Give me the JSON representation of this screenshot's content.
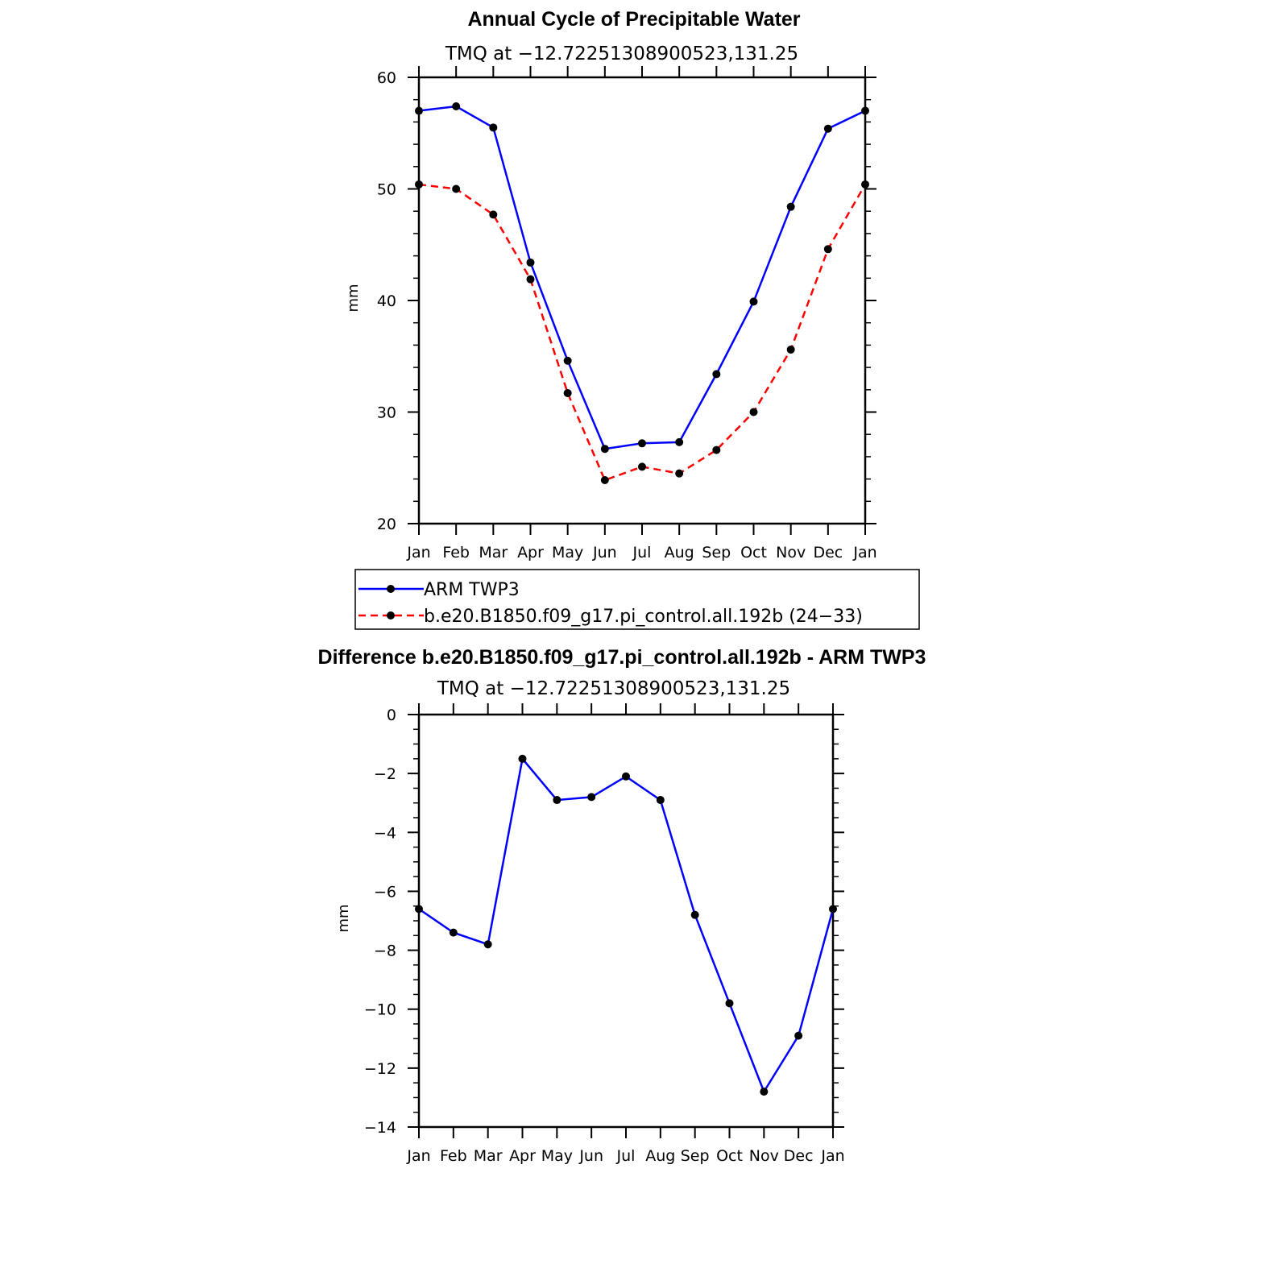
{
  "chart_data": [
    {
      "type": "line",
      "title": "Annual Cycle of Precipitable Water",
      "subtitle": "TMQ at −12.72251308900523,131.25",
      "ylabel": "mm",
      "xlabel": "",
      "categories": [
        "Jan",
        "Feb",
        "Mar",
        "Apr",
        "May",
        "Jun",
        "Jul",
        "Aug",
        "Sep",
        "Oct",
        "Nov",
        "Dec",
        "Jan"
      ],
      "ylim": [
        20,
        60
      ],
      "yticks": [
        "20",
        "30",
        "40",
        "50",
        "60"
      ],
      "series": [
        {
          "name": "ARM TWP3",
          "color": "#0000ff",
          "dash": "solid",
          "values": [
            57.0,
            57.4,
            55.5,
            43.4,
            34.6,
            26.7,
            27.2,
            27.3,
            33.4,
            39.9,
            48.4,
            55.4,
            57.0
          ]
        },
        {
          "name": "b.e20.B1850.f09_g17.pi_control.all.192b (24−33)",
          "color": "#ff0000",
          "dash": "dashed",
          "values": [
            50.4,
            50.0,
            47.7,
            41.9,
            31.7,
            23.9,
            25.1,
            24.5,
            26.6,
            30.0,
            35.6,
            44.6,
            50.4
          ]
        }
      ],
      "legend": "below"
    },
    {
      "type": "line",
      "title": "Difference b.e20.B1850.f09_g17.pi_control.all.192b - ARM TWP3",
      "subtitle": "TMQ at −12.72251308900523,131.25",
      "ylabel": "mm",
      "xlabel": "",
      "categories": [
        "Jan",
        "Feb",
        "Mar",
        "Apr",
        "May",
        "Jun",
        "Jul",
        "Aug",
        "Sep",
        "Oct",
        "Nov",
        "Dec",
        "Jan"
      ],
      "ylim": [
        -14,
        0
      ],
      "yticks": [
        "−14",
        "−12",
        "−10",
        "−8",
        "−6",
        "−4",
        "−2",
        "0"
      ],
      "series": [
        {
          "name": "Difference",
          "color": "#0000ff",
          "dash": "solid",
          "values": [
            -6.6,
            -7.4,
            -7.8,
            -1.5,
            -2.9,
            -2.8,
            -2.1,
            -2.9,
            -6.8,
            -9.8,
            -12.8,
            -10.9,
            -6.6
          ]
        }
      ]
    }
  ]
}
